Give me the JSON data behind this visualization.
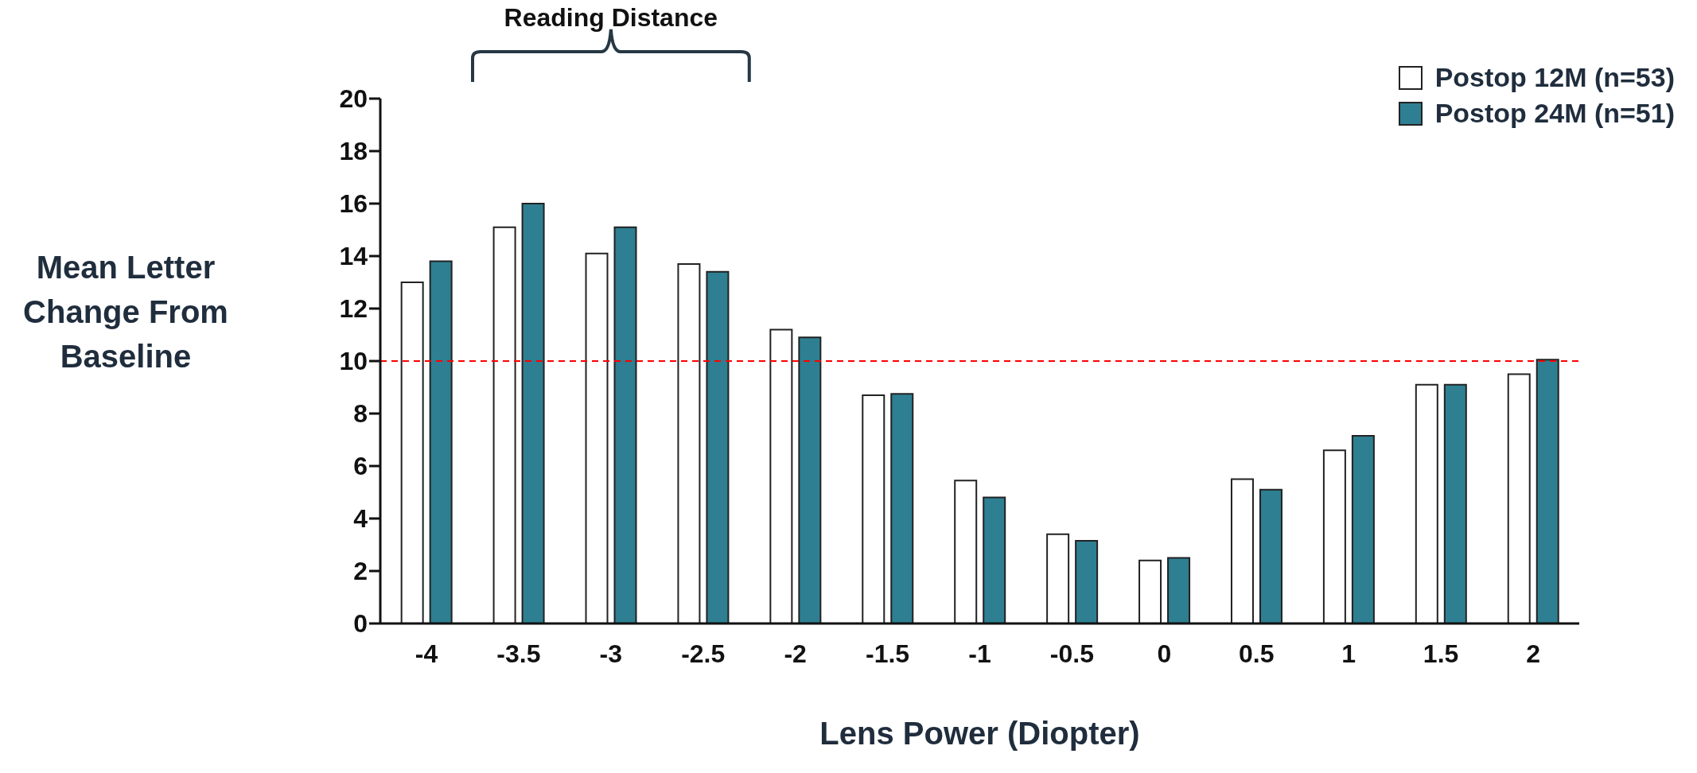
{
  "chart_data": {
    "type": "bar",
    "xlabel": "Lens Power (Diopter)",
    "ylabel": "Mean Letter Change From Baseline",
    "categories": [
      "-4",
      "-3.5",
      "-3",
      "-2.5",
      "-2",
      "-1.5",
      "-1",
      "-0.5",
      "0",
      "0.5",
      "1",
      "1.5",
      "2"
    ],
    "series": [
      {
        "name": "Postop 12M (n=53)",
        "color": "#ffffff",
        "values": [
          13.0,
          15.1,
          14.1,
          13.7,
          11.2,
          8.7,
          5.45,
          3.4,
          2.4,
          5.5,
          6.6,
          9.1,
          9.5
        ]
      },
      {
        "name": "Postop 24M (n=51)",
        "color": "#2e7f92",
        "values": [
          13.8,
          16.0,
          15.1,
          13.4,
          10.9,
          8.75,
          4.8,
          3.15,
          2.5,
          5.1,
          7.15,
          9.1,
          10.05
        ]
      }
    ],
    "ylim": [
      0,
      20
    ],
    "yticks": [
      0,
      2,
      4,
      6,
      8,
      10,
      12,
      14,
      16,
      18,
      20
    ],
    "grid": false,
    "legend": "top right",
    "ref_lines": [
      {
        "axis": "y",
        "value": 10,
        "label": null,
        "color": "#ff0000",
        "line_style": "dashed"
      }
    ],
    "annotations": [
      "Reading Distance"
    ]
  }
}
